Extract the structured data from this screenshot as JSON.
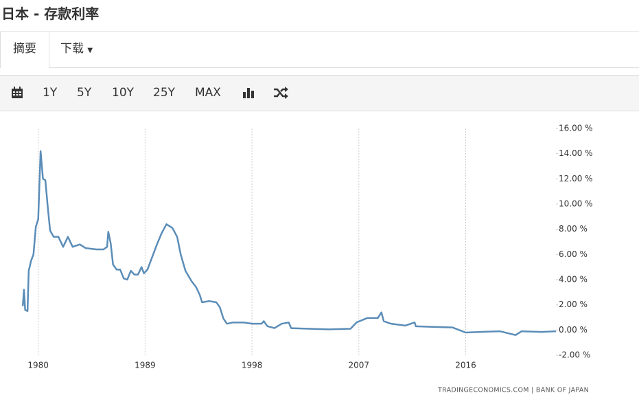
{
  "header": {
    "title": "日本 - 存款利率"
  },
  "tabs": [
    "摘要",
    "下载"
  ],
  "toolbar": [
    "1Y",
    "5Y",
    "10Y",
    "25Y",
    "MAX"
  ],
  "chart_data": {
    "type": "line",
    "color": "#5b8db8",
    "xgrid": true,
    "source": "TRADINGECONOMICS.COM  |  BANK OF JAPAN",
    "x": [
      1978.7,
      1978.8,
      1978.9,
      1979.1,
      1979.2,
      1979.4,
      1979.6,
      1979.8,
      1980.0,
      1980.2,
      1980.3,
      1980.4,
      1980.6,
      1980.8,
      1981.0,
      1981.3,
      1981.7,
      1982.1,
      1982.5,
      1982.9,
      1983.5,
      1984.0,
      1984.9,
      1985.5,
      1985.8,
      1985.9,
      1986.1,
      1986.3,
      1986.6,
      1986.9,
      1987.2,
      1987.5,
      1987.8,
      1988.1,
      1988.4,
      1988.7,
      1988.9,
      1989.2,
      1989.6,
      1990.0,
      1990.4,
      1990.8,
      1991.3,
      1991.7,
      1992.0,
      1992.4,
      1992.9,
      1993.3,
      1993.6,
      1993.8,
      1994.4,
      1995.0,
      1995.3,
      1995.6,
      1995.9,
      1996.4,
      1997.3,
      1998.0,
      1998.8,
      1999.0,
      1999.3,
      1999.9,
      2000.5,
      2001.1,
      2001.3,
      2002.8,
      2004.5,
      2006.3,
      2006.8,
      2007.7,
      2008.6,
      2008.9,
      2009.1,
      2009.7,
      2010.9,
      2011.7,
      2011.8,
      2013.2,
      2014.9,
      2016.0,
      2017.2,
      2018.9,
      2020.2,
      2020.7,
      2022.4,
      2023.6
    ],
    "values": [
      1.9,
      3.2,
      1.6,
      1.5,
      4.7,
      5.5,
      6.0,
      8.2,
      8.8,
      14.2,
      13.1,
      12.0,
      11.9,
      9.8,
      7.9,
      7.4,
      7.4,
      6.6,
      7.4,
      6.6,
      6.8,
      6.5,
      6.4,
      6.4,
      6.6,
      7.8,
      6.9,
      5.2,
      4.8,
      4.8,
      4.1,
      4.0,
      4.7,
      4.4,
      4.4,
      5.0,
      4.5,
      4.8,
      5.8,
      6.8,
      7.7,
      8.4,
      8.1,
      7.4,
      6.0,
      4.7,
      3.9,
      3.4,
      2.8,
      2.2,
      2.3,
      2.2,
      1.8,
      0.9,
      0.5,
      0.6,
      0.6,
      0.5,
      0.5,
      0.7,
      0.3,
      0.15,
      0.5,
      0.6,
      0.15,
      0.1,
      0.05,
      0.1,
      0.6,
      0.95,
      0.95,
      1.4,
      0.7,
      0.5,
      0.35,
      0.6,
      0.3,
      0.25,
      0.2,
      -0.2,
      -0.15,
      -0.1,
      -0.4,
      -0.1,
      -0.15,
      -0.1
    ],
    "xlim": [
      1978.4,
      2023.6
    ],
    "xticks": [
      1980,
      1989,
      1998,
      2007,
      2016
    ],
    "ylim": [
      -2,
      16
    ],
    "yticks": [
      {
        "value": -2,
        "label": "-2.00 %"
      },
      {
        "value": 0,
        "label": "0.00 %"
      },
      {
        "value": 2,
        "label": "2.00 %"
      },
      {
        "value": 4,
        "label": "4.00 %"
      },
      {
        "value": 6,
        "label": "6.00 %"
      },
      {
        "value": 8,
        "label": "8.00 %"
      },
      {
        "value": 10,
        "label": "10.00 %"
      },
      {
        "value": 12,
        "label": "12.00 %"
      },
      {
        "value": 14,
        "label": "14.00 %"
      },
      {
        "value": 16,
        "label": "16.00 %"
      }
    ]
  }
}
